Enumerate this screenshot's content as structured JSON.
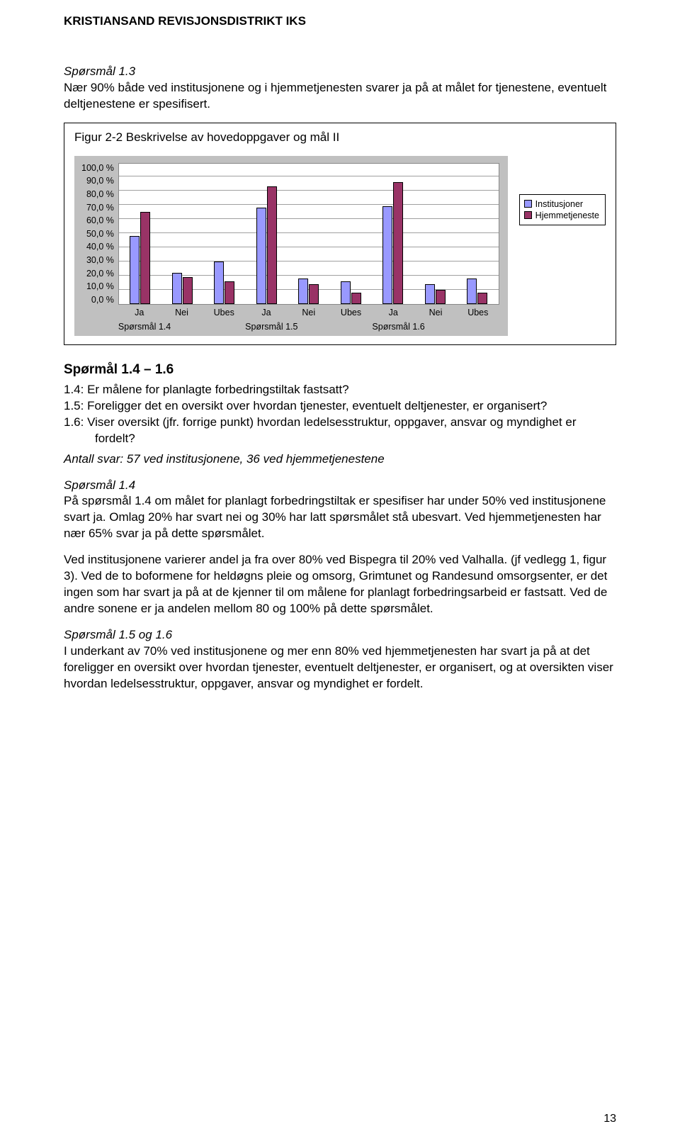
{
  "header": "KRISTIANSAND REVISJONSDISTRIKT IKS",
  "a": {
    "title": "Spørsmål 1.3",
    "body": "Nær 90% både ved institusjonene og i hjemmetjenesten svarer ja på at målet for tjenestene, eventuelt deltjenestene er spesifisert."
  },
  "chart": {
    "title": "Figur 2-2 Beskrivelse av hovedoppgaver og mål II",
    "type": "grouped-bar",
    "ylim_max": 100,
    "ytick_step": 10,
    "y_format_suffix": " %",
    "y_ticks": [
      "100,0 %",
      "90,0 %",
      "80,0 %",
      "70,0 %",
      "60,0 %",
      "50,0 %",
      "40,0 %",
      "30,0 %",
      "20,0 %",
      "10,0 %",
      "0,0 %"
    ],
    "legend": [
      {
        "label": "Institusjoner",
        "color": "#9999ff"
      },
      {
        "label": "Hjemmetjeneste",
        "color": "#993366"
      }
    ],
    "sub_labels": [
      "Ja",
      "Nei",
      "Ubes"
    ],
    "groups": [
      {
        "label": "Spørsmål 1.4",
        "subs": [
          {
            "inst": 48,
            "hjem": 65
          },
          {
            "inst": 22,
            "hjem": 19
          },
          {
            "inst": 30,
            "hjem": 16
          }
        ]
      },
      {
        "label": "Spørsmål 1.5",
        "subs": [
          {
            "inst": 68,
            "hjem": 83
          },
          {
            "inst": 18,
            "hjem": 14
          },
          {
            "inst": 16,
            "hjem": 8
          }
        ]
      },
      {
        "label": "Spørsmål 1.6",
        "subs": [
          {
            "inst": 69,
            "hjem": 86
          },
          {
            "inst": 14,
            "hjem": 10
          },
          {
            "inst": 18,
            "hjem": 8
          }
        ]
      }
    ],
    "background_color": "#c0c0c0",
    "plot_background": "#ffffff",
    "grid_color": "#a0a0a0",
    "bar_border_color": "#000000"
  },
  "section_head": "Spørmål 1.4 – 1.6",
  "q_lines": {
    "l14": "1.4: Er målene for planlagte forbedringstiltak fastsatt?",
    "l15": "1.5: Foreligger det en oversikt over hvordan tjenester, eventuelt deltjenester, er organisert?",
    "l16": "1.6: Viser oversikt (jfr. forrige punkt) hvordan ledelsesstruktur, oppgaver, ansvar og myndighet er fordelt?"
  },
  "antall": "Antall svar: 57 ved institusjonene, 36 ved hjemmetjenestene",
  "p14": {
    "title": "Spørsmål 1.4",
    "b1": "På spørsmål 1.4 om målet for planlagt forbedringstiltak er spesifiser har under 50% ved institusjonene svart ja. Omlag 20% har svart nei og 30% har latt spørsmålet stå ubesvart. Ved hjemmetjenesten har nær 65% svar ja på dette spørsmålet.",
    "b2": "Ved institusjonene varierer andel ja fra over 80% ved Bispegra til 20% ved Valhalla. (jf vedlegg 1, figur 3). Ved de to boformene for heldøgns pleie og omsorg, Grimtunet og Randesund omsorgsenter, er det ingen som har svart ja på at de kjenner til om målene for planlagt forbedringsarbeid er fastsatt. Ved de andre sonene er ja andelen mellom 80 og 100% på dette spørsmålet."
  },
  "p1516": {
    "title": "Spørsmål 1.5 og 1.6",
    "b": "I underkant av 70% ved institusjonene og mer enn 80% ved hjemmetjenesten har svart ja på at det foreligger en oversikt over hvordan tjenester, eventuelt deltjenester, er organisert, og at oversikten viser hvordan ledelsesstruktur, oppgaver, ansvar og myndighet er fordelt."
  },
  "page_number": "13"
}
